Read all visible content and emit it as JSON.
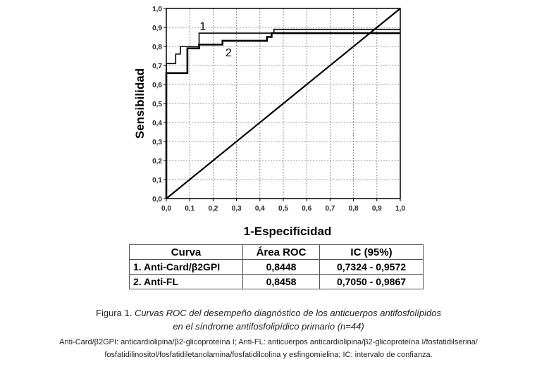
{
  "chart_data": {
    "type": "line",
    "xlabel": "1-Especificidad",
    "ylabel": "Sensibilidad",
    "xlim": [
      0,
      1
    ],
    "ylim": [
      0,
      1
    ],
    "xticks": [
      "0,0",
      "0,1",
      "0,2",
      "0,3",
      "0,4",
      "0,5",
      "0,6",
      "0,7",
      "0,8",
      "0,9",
      "1,0"
    ],
    "yticks": [
      "0,0",
      "0,1",
      "0,2",
      "0,3",
      "0,4",
      "0,5",
      "0,6",
      "0,7",
      "0,8",
      "0,9",
      "1,0"
    ],
    "grid": true,
    "series": [
      {
        "name": "1",
        "step": true,
        "x": [
          0,
          0,
          0.04,
          0.04,
          0.06,
          0.06,
          0.14,
          0.14,
          0.46,
          0.46,
          1.0
        ],
        "y": [
          0,
          0.71,
          0.71,
          0.76,
          0.76,
          0.8,
          0.8,
          0.87,
          0.87,
          0.89,
          0.89
        ]
      },
      {
        "name": "2",
        "step": true,
        "x": [
          0,
          0,
          0.09,
          0.09,
          0.14,
          0.14,
          0.24,
          0.24,
          0.43,
          0.43,
          0.45,
          0.45,
          1.0
        ],
        "y": [
          0,
          0.66,
          0.66,
          0.79,
          0.79,
          0.81,
          0.81,
          0.83,
          0.83,
          0.85,
          0.85,
          0.87,
          0.87
        ]
      },
      {
        "name": "",
        "x": [
          0,
          1
        ],
        "y": [
          0,
          1
        ]
      }
    ],
    "labels": [
      {
        "text": "1",
        "x": 0.15,
        "y": 0.91
      },
      {
        "text": "2",
        "x": 0.26,
        "y": 0.77
      }
    ]
  },
  "table": {
    "headers": [
      "Curva",
      "Área ROC",
      "IC  (95%)"
    ],
    "rows": [
      [
        "1. Anti-Card/β2GPI",
        "0,8448",
        "0,7324 - 0,9572"
      ],
      [
        "2. Anti-FL",
        "0,8458",
        "0,7050 - 0,9867"
      ]
    ]
  },
  "caption": {
    "prefix": "Figura 1. ",
    "line1": "Curvas ROC del desempeño diagnóstico de los anticuerpos antifosfolípidos",
    "line2": "en el síndrome antifosfolipídico primario (n=44)"
  },
  "footnote": {
    "line1": "Anti-Card/β2GPI: anticardiolipina/β2-glicoproteína I; Anti-FL: anticuerpos anticardiolipina/β2-glicoproteína I/fosfatidilserina/",
    "line2": "fosfatidilinositol/fosfatidiletanolamina/fosfatidilcolina y esfingomielina; IC: intervalo de confianza."
  }
}
